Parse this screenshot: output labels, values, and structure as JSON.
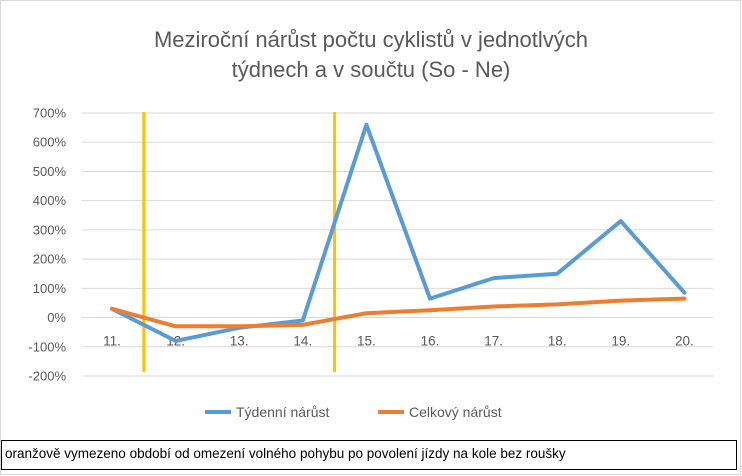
{
  "chart_data": {
    "type": "line",
    "title_lines": [
      "Meziroční nárůst počtu cyklistů v jednotlvých",
      "týdnech a v součtu (So - Ne)"
    ],
    "categories": [
      "11.",
      "12.",
      "13.",
      "14.",
      "15.",
      "16.",
      "17.",
      "18.",
      "19.",
      "20."
    ],
    "y_ticks": [
      700,
      600,
      500,
      400,
      300,
      200,
      100,
      0,
      -100,
      -200
    ],
    "y_tick_labels": [
      "700%",
      "600%",
      "500%",
      "400%",
      "300%",
      "200%",
      "100%",
      "0%",
      "-100%",
      "-200%"
    ],
    "ylim": [
      -200,
      700
    ],
    "grid": true,
    "legend_position": "bottom",
    "series": [
      {
        "name": "Týdenní nárůst",
        "color": "#5b9bd5",
        "values": [
          30,
          -80,
          -35,
          -10,
          660,
          65,
          135,
          150,
          330,
          85
        ]
      },
      {
        "name": "Celkový nárůst",
        "color": "#ed7d31",
        "values": [
          30,
          -30,
          -30,
          -25,
          15,
          25,
          38,
          45,
          58,
          65
        ]
      }
    ],
    "annotation": {
      "text": "oranžově vymezeno období od omezení volného pohybu po povolení jízdy na kole bez roušky",
      "marker_color": "#ffc000",
      "marker_positions": [
        11.5,
        14.5
      ]
    }
  }
}
